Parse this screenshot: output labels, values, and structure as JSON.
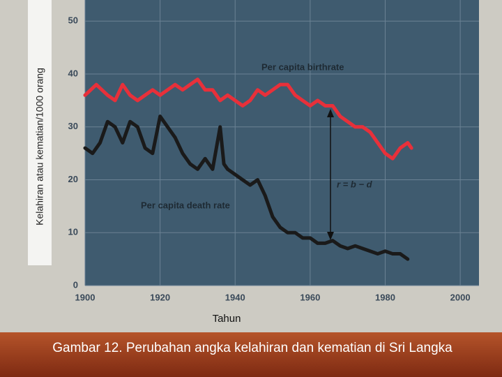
{
  "chart_data": {
    "type": "line",
    "y_label": "Kelahiran atau kematian/1000 orang",
    "x_label": "Tahun",
    "caption": "Gambar 12. Perubahan angka kelahiran dan kematian di Sri Langka",
    "annotations": [
      "Per capita birthrate",
      "Per capita death rate",
      "r = b − d"
    ],
    "xlim": [
      1900,
      2005
    ],
    "ylim": [
      0,
      54
    ],
    "xticks": [
      1900,
      1920,
      1940,
      1960,
      1980,
      2000
    ],
    "yticks": [
      0,
      10,
      20,
      30,
      40,
      50
    ],
    "grid": true,
    "series": [
      {
        "name": "Per capita birthrate",
        "color": "#e8303a",
        "x": [
          1900,
          1903,
          1906,
          1908,
          1910,
          1912,
          1914,
          1916,
          1918,
          1920,
          1922,
          1924,
          1926,
          1928,
          1930,
          1932,
          1934,
          1936,
          1938,
          1940,
          1942,
          1944,
          1946,
          1948,
          1950,
          1952,
          1954,
          1956,
          1958,
          1960,
          1962,
          1964,
          1966,
          1968,
          1970,
          1972,
          1974,
          1976,
          1978,
          1980,
          1982,
          1984,
          1986,
          1987
        ],
        "values": [
          36,
          38,
          36,
          35,
          38,
          36,
          35,
          36,
          37,
          36,
          37,
          38,
          37,
          38,
          39,
          37,
          37,
          35,
          36,
          35,
          34,
          35,
          37,
          36,
          37,
          38,
          38,
          36,
          35,
          34,
          35,
          34,
          34,
          32,
          31,
          30,
          30,
          29,
          27,
          25,
          24,
          26,
          27,
          26
        ]
      },
      {
        "name": "Per capita death rate",
        "color": "#1a1a1a",
        "x": [
          1900,
          1902,
          1904,
          1906,
          1908,
          1910,
          1912,
          1914,
          1916,
          1918,
          1920,
          1922,
          1924,
          1926,
          1928,
          1930,
          1932,
          1934,
          1936,
          1937,
          1938,
          1940,
          1942,
          1944,
          1946,
          1948,
          1950,
          1952,
          1954,
          1956,
          1958,
          1960,
          1962,
          1964,
          1966,
          1968,
          1970,
          1972,
          1974,
          1976,
          1978,
          1980,
          1982,
          1984,
          1986
        ],
        "values": [
          26,
          25,
          27,
          31,
          30,
          27,
          31,
          30,
          26,
          25,
          32,
          30,
          28,
          25,
          23,
          22,
          24,
          22,
          30,
          23,
          22,
          21,
          20,
          19,
          20,
          17,
          13,
          11,
          10,
          10,
          9,
          9,
          8,
          8,
          8.5,
          7.5,
          7,
          7.5,
          7,
          6.5,
          6,
          6.5,
          6,
          6,
          5
        ]
      }
    ]
  }
}
